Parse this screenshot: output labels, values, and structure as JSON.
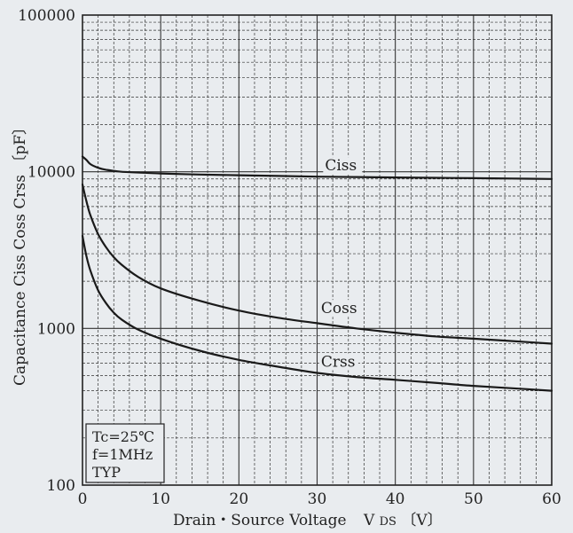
{
  "chart_data": {
    "type": "line",
    "xlabel": "Drain・Source Voltage",
    "xlabel_symbol": "V",
    "xlabel_sub": "DS",
    "xlabel_unit": "〔V〕",
    "ylabel": "Capacitance Ciss Coss Crss 〔pF〕",
    "xlim": [
      0,
      60
    ],
    "ylim": [
      100,
      100000
    ],
    "yscale": "log",
    "grid": true,
    "x_ticks": [
      0,
      10,
      20,
      30,
      40,
      50,
      60
    ],
    "x_tick_labels": [
      "0",
      "10",
      "20",
      "30",
      "40",
      "50",
      "60"
    ],
    "y_ticks": [
      100,
      1000,
      10000,
      100000
    ],
    "y_tick_labels": [
      "100",
      "1000",
      "10000",
      "100000"
    ],
    "conditions": [
      "Tc=25℃",
      "f=1MHz",
      "TYP"
    ],
    "series": [
      {
        "name": "Ciss",
        "label_at": [
          31,
          10200
        ],
        "x": [
          0,
          0.5,
          1,
          2,
          3,
          5,
          8,
          10,
          15,
          20,
          25,
          30,
          35,
          40,
          45,
          50,
          55,
          60
        ],
        "y": [
          12500,
          11900,
          11200,
          10600,
          10300,
          10000,
          9850,
          9750,
          9600,
          9500,
          9400,
          9300,
          9250,
          9200,
          9150,
          9100,
          9050,
          9000
        ]
      },
      {
        "name": "Coss",
        "label_at": [
          30.5,
          1250
        ],
        "x": [
          0,
          0.5,
          1,
          2,
          3,
          4,
          5,
          7,
          10,
          15,
          20,
          25,
          30,
          35,
          40,
          45,
          50,
          55,
          60
        ],
        "y": [
          8300,
          6500,
          5300,
          4000,
          3300,
          2850,
          2550,
          2150,
          1800,
          1500,
          1300,
          1170,
          1080,
          1000,
          940,
          890,
          860,
          830,
          800
        ]
      },
      {
        "name": "Crss",
        "label_at": [
          30.5,
          570
        ],
        "x": [
          0,
          0.5,
          1,
          2,
          3,
          4,
          5,
          7,
          10,
          15,
          20,
          25,
          30,
          35,
          40,
          45,
          50,
          55,
          60
        ],
        "y": [
          3900,
          2900,
          2350,
          1750,
          1450,
          1260,
          1140,
          990,
          860,
          720,
          630,
          570,
          520,
          490,
          470,
          450,
          430,
          415,
          400
        ]
      }
    ]
  }
}
